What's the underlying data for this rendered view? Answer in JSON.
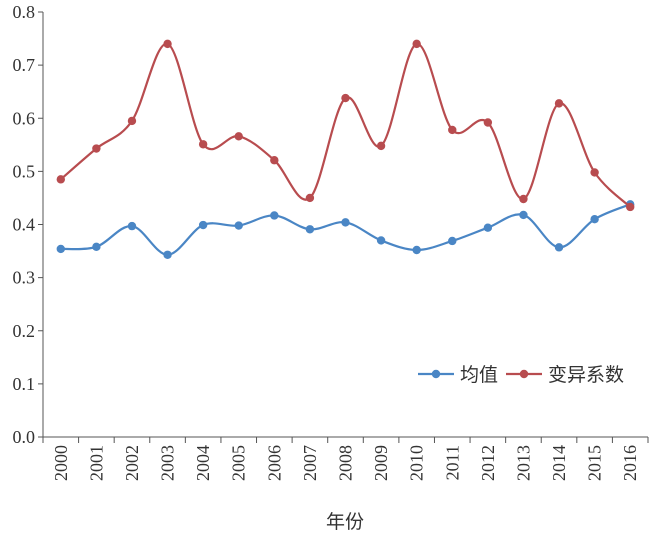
{
  "chart_data": {
    "type": "line",
    "title": "",
    "xlabel": "年份",
    "ylabel": "",
    "ylim": [
      0.0,
      0.8
    ],
    "yticks": [
      "0.0",
      "0.1",
      "0.2",
      "0.3",
      "0.4",
      "0.5",
      "0.6",
      "0.7",
      "0.8"
    ],
    "categories": [
      "2000",
      "2001",
      "2002",
      "2003",
      "2004",
      "2005",
      "2006",
      "2007",
      "2008",
      "2009",
      "2010",
      "2011",
      "2012",
      "2013",
      "2014",
      "2015",
      "2016"
    ],
    "series": [
      {
        "name": "均值",
        "color": "#4a86c5",
        "values": [
          0.354,
          0.358,
          0.397,
          0.343,
          0.399,
          0.398,
          0.417,
          0.391,
          0.404,
          0.37,
          0.352,
          0.369,
          0.394,
          0.418,
          0.357,
          0.41,
          0.438
        ]
      },
      {
        "name": "变异系数",
        "color": "#b84c4f",
        "values": [
          0.485,
          0.543,
          0.595,
          0.74,
          0.551,
          0.566,
          0.521,
          0.45,
          0.638,
          0.548,
          0.74,
          0.578,
          0.592,
          0.448,
          0.628,
          0.498,
          0.433
        ]
      }
    ],
    "smooth": true,
    "grid": false,
    "legend_position": "bottom-right"
  }
}
